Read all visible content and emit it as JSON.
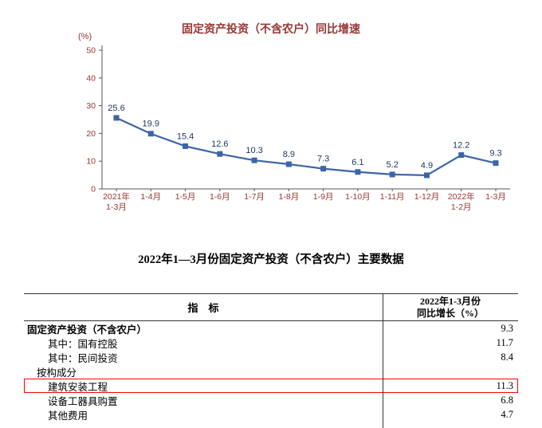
{
  "chart": {
    "title": "固定资产投资（不含农户）同比增速",
    "unit_label": "(%)",
    "title_color": "#953735",
    "axis_color": "#953735",
    "label_color": "#1F3864",
    "line_color": "#3C64A8"
  },
  "chart_data": {
    "type": "line",
    "title": "固定资产投资（不含农户）同比增速",
    "ylabel": "(%)",
    "categories": [
      "2021年\n1-3月",
      "1-4月",
      "1-5月",
      "1-6月",
      "1-7月",
      "1-8月",
      "1-9月",
      "1-10月",
      "1-11月",
      "1-12月",
      "2022年\n1-2月",
      "1-3月"
    ],
    "values": [
      25.6,
      19.9,
      15.4,
      12.6,
      10.3,
      8.9,
      7.3,
      6.1,
      5.2,
      4.9,
      12.2,
      9.3
    ],
    "ylim": [
      0,
      50
    ],
    "ytick_step": 10,
    "grid": false,
    "legend": "none",
    "marker": "square"
  },
  "table": {
    "title": "2022年1—3月份固定资产投资（不含农户）主要数据",
    "header": {
      "indicator": "指　标",
      "value_line1": "2022年1-3月份",
      "value_line2": "同比增长（%）"
    },
    "rows": [
      {
        "label": "固定资产投资（不含农户）",
        "value": "9.3",
        "indent": 0,
        "bold": true,
        "highlighted": false
      },
      {
        "label": "其中：国有控股",
        "value": "11.7",
        "indent": 1,
        "bold": false,
        "highlighted": false
      },
      {
        "label": "其中：民间投资",
        "value": "8.4",
        "indent": 1,
        "bold": false,
        "highlighted": false
      },
      {
        "label": "按构成分",
        "value": "",
        "indent": 0.5,
        "bold": false,
        "highlighted": false
      },
      {
        "label": "建筑安装工程",
        "value": "11.3",
        "indent": 1,
        "bold": false,
        "highlighted": true
      },
      {
        "label": "设备工器具购置",
        "value": "6.8",
        "indent": 1,
        "bold": false,
        "highlighted": false
      },
      {
        "label": "其他费用",
        "value": "4.7",
        "indent": 1,
        "bold": false,
        "highlighted": false
      }
    ]
  }
}
